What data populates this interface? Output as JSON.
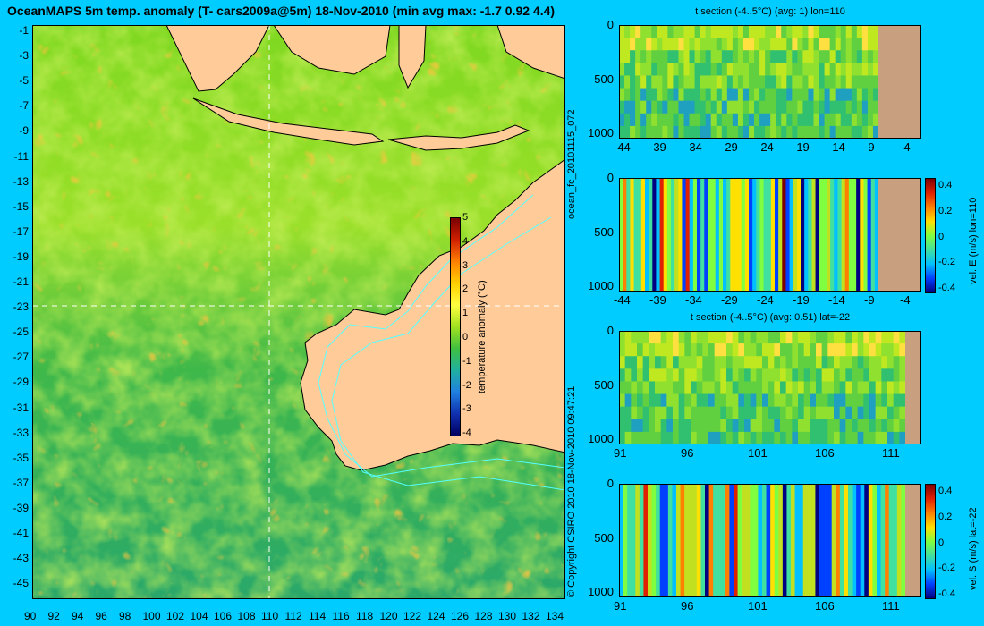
{
  "title": "OceanMAPS 5m temp. anomaly (T- cars2009a@5m) 18-Nov-2010 (min avg max: -1.7 0.92 4.4)",
  "side_text": {
    "run_id": "ocean_fc_20101115_072",
    "copyright": "© Copyright CSIRO 2010   18-Nov-2010 09:47:21"
  },
  "colors": {
    "background": "#00ccff",
    "land": "#ffcc99",
    "section_land": "#c8a080",
    "contour": "#55ffff",
    "crosshair": "#ffffff"
  },
  "map": {
    "x_ticks": [
      "90",
      "92",
      "94",
      "96",
      "98",
      "100",
      "102",
      "104",
      "106",
      "108",
      "110",
      "112",
      "114",
      "116",
      "118",
      "120",
      "122",
      "124",
      "126",
      "128",
      "130",
      "132",
      "134"
    ],
    "y_ticks": [
      "-1",
      "-3",
      "-5",
      "-7",
      "-9",
      "-11",
      "-13",
      "-15",
      "-17",
      "-19",
      "-21",
      "-23",
      "-25",
      "-27",
      "-29",
      "-31",
      "-33",
      "-35",
      "-37",
      "-39",
      "-41",
      "-43",
      "-45"
    ],
    "lon_range": [
      90,
      135
    ],
    "lat_range": [
      -45,
      0
    ],
    "crosshair_lon": 110,
    "crosshair_lat": -22
  },
  "colorbar": {
    "label": "temperature anomaly (°C)",
    "ticks": [
      "5",
      "4",
      "3",
      "2",
      "1",
      "0",
      "-1",
      "-2",
      "-3",
      "-4"
    ],
    "range": [
      -4,
      5
    ]
  },
  "panels": [
    {
      "title": "t section (-4..5°C) (avg: 1) lon=110",
      "x_ticks": [
        "-44",
        "-39",
        "-34",
        "-29",
        "-24",
        "-19",
        "-14",
        "-9",
        "-4"
      ],
      "y_ticks": [
        "0",
        "500",
        "1000"
      ],
      "colorbar": null
    },
    {
      "title": "",
      "x_ticks": [
        "-44",
        "-39",
        "-34",
        "-29",
        "-24",
        "-19",
        "-14",
        "-9",
        "-4"
      ],
      "y_ticks": [
        "0",
        "500",
        "1000"
      ],
      "colorbar": {
        "label": "vel. E (m/s) lon=110",
        "ticks": [
          "0.4",
          "0.2",
          "0",
          "-0.2",
          "-0.4"
        ]
      }
    },
    {
      "title": "t section (-4..5°C) (avg: 0.51) lat=-22",
      "x_ticks": [
        "91",
        "96",
        "101",
        "106",
        "111"
      ],
      "y_ticks": [
        "0",
        "500",
        "1000"
      ],
      "colorbar": null
    },
    {
      "title": "",
      "x_ticks": [
        "91",
        "96",
        "101",
        "106",
        "111"
      ],
      "y_ticks": [
        "0",
        "500",
        "1000"
      ],
      "colorbar": {
        "label": "vel. S (m/s) lat=-22",
        "ticks": [
          "0.4",
          "0.2",
          "0",
          "-0.2",
          "-0.4"
        ]
      }
    }
  ]
}
